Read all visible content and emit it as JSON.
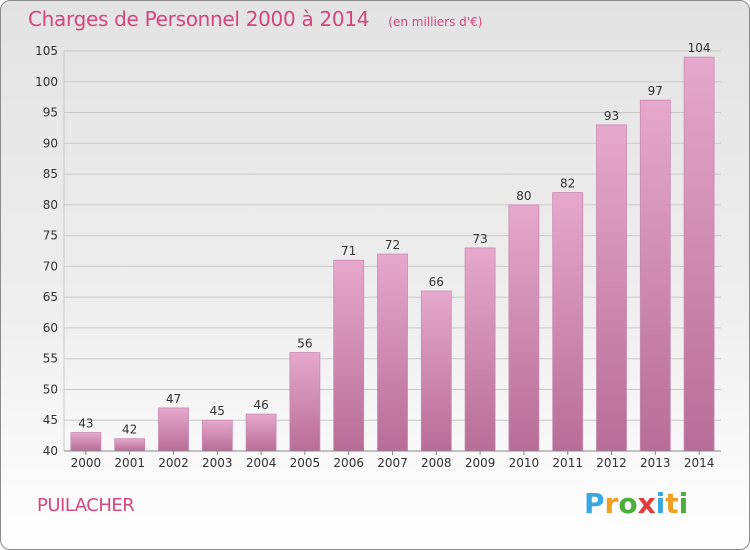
{
  "header": {
    "title": "Charges de Personnel 2000 à 2014",
    "subtitle": "(en milliers d'€)"
  },
  "footer": {
    "commune": "PUILACHER",
    "brand_letters": [
      "P",
      "r",
      "o",
      "x",
      "i",
      "t",
      "i"
    ],
    "brand_colors": [
      "#3aa8e0",
      "#f0a020",
      "#4cae3c",
      "#e23c3c",
      "#3aa8e0",
      "#f0a020",
      "#4cae3c"
    ]
  },
  "colors": {
    "bar_top": "#e6a8cc",
    "bar_bottom": "#b76d97",
    "bar_edge": "#c98ab0",
    "accent": "#d1477e",
    "grid": "#c8c8c8",
    "axis_text": "#333333"
  },
  "chart_data": {
    "type": "bar",
    "title": "Charges de Personnel 2000 à 2014",
    "subtitle": "(en milliers d'€)",
    "categories": [
      "2000",
      "2001",
      "2002",
      "2003",
      "2004",
      "2005",
      "2006",
      "2007",
      "2008",
      "2009",
      "2010",
      "2011",
      "2012",
      "2013",
      "2014"
    ],
    "values": [
      43,
      42,
      47,
      45,
      46,
      56,
      71,
      72,
      66,
      73,
      80,
      82,
      93,
      97,
      104
    ],
    "ylim": [
      40,
      105
    ],
    "yticks": [
      40,
      45,
      50,
      55,
      60,
      65,
      70,
      75,
      80,
      85,
      90,
      95,
      100,
      105
    ],
    "grid": true,
    "data_labels": true
  }
}
